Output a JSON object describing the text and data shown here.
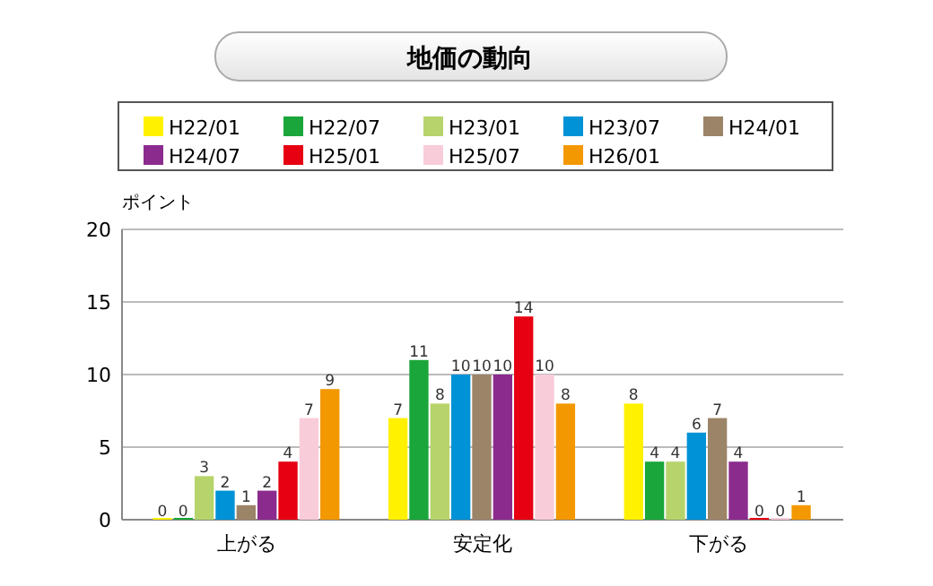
{
  "chart_data": {
    "type": "bar",
    "title": "地価の動向",
    "ylabel": "ポイント",
    "categories": [
      "上がる",
      "安定化",
      "下がる"
    ],
    "series": [
      {
        "name": "H22/01",
        "color": "#fff100",
        "values": [
          0,
          7,
          8
        ]
      },
      {
        "name": "H22/07",
        "color": "#1aa63a",
        "values": [
          0,
          11,
          4
        ]
      },
      {
        "name": "H23/01",
        "color": "#b6d46b",
        "values": [
          3,
          8,
          4
        ]
      },
      {
        "name": "H23/07",
        "color": "#0092d6",
        "values": [
          2,
          10,
          6
        ]
      },
      {
        "name": "H24/01",
        "color": "#9c8468",
        "values": [
          1,
          10,
          7
        ]
      },
      {
        "name": "H24/07",
        "color": "#8b2b8e",
        "values": [
          2,
          10,
          4
        ]
      },
      {
        "name": "H25/01",
        "color": "#e60012",
        "values": [
          4,
          14,
          0
        ]
      },
      {
        "name": "H25/07",
        "color": "#f9ccd9",
        "values": [
          7,
          10,
          0
        ]
      },
      {
        "name": "H26/01",
        "color": "#f39800",
        "values": [
          9,
          8,
          1
        ]
      }
    ],
    "ylim": [
      0,
      20
    ],
    "yticks": [
      0,
      5,
      10,
      15,
      20
    ],
    "grid": "y",
    "legend": "top",
    "data_labels": true
  }
}
